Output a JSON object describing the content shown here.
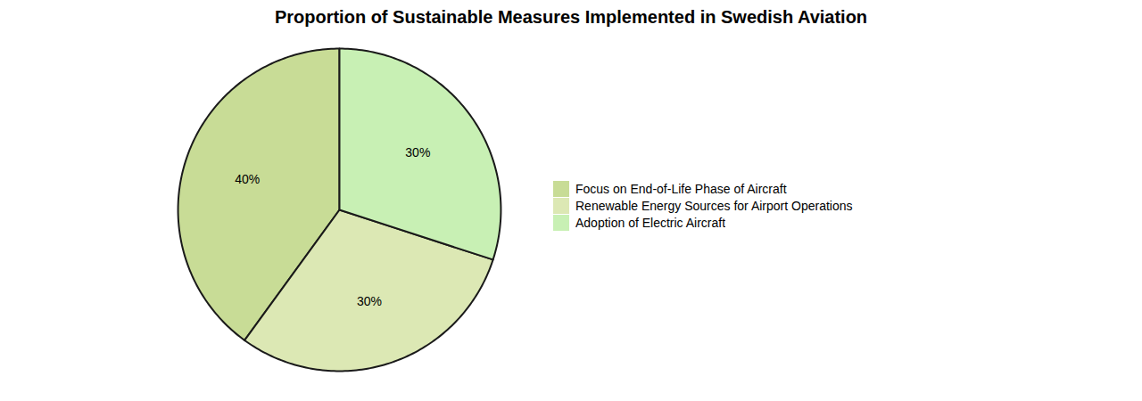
{
  "chart_data": {
    "type": "pie",
    "title": "Proportion of Sustainable Measures Implemented in Swedish Aviation",
    "categories": [
      "Focus on End-of-Life Phase of Aircraft",
      "Renewable Energy Sources for Airport Operations",
      "Adoption of Electric Aircraft"
    ],
    "values": [
      40,
      30,
      30
    ],
    "value_labels": [
      "40%",
      "30%",
      "30%"
    ],
    "colors": [
      "#c8dc96",
      "#dce8b4",
      "#c8f0b4"
    ],
    "data_labels": true,
    "legend": "right"
  }
}
